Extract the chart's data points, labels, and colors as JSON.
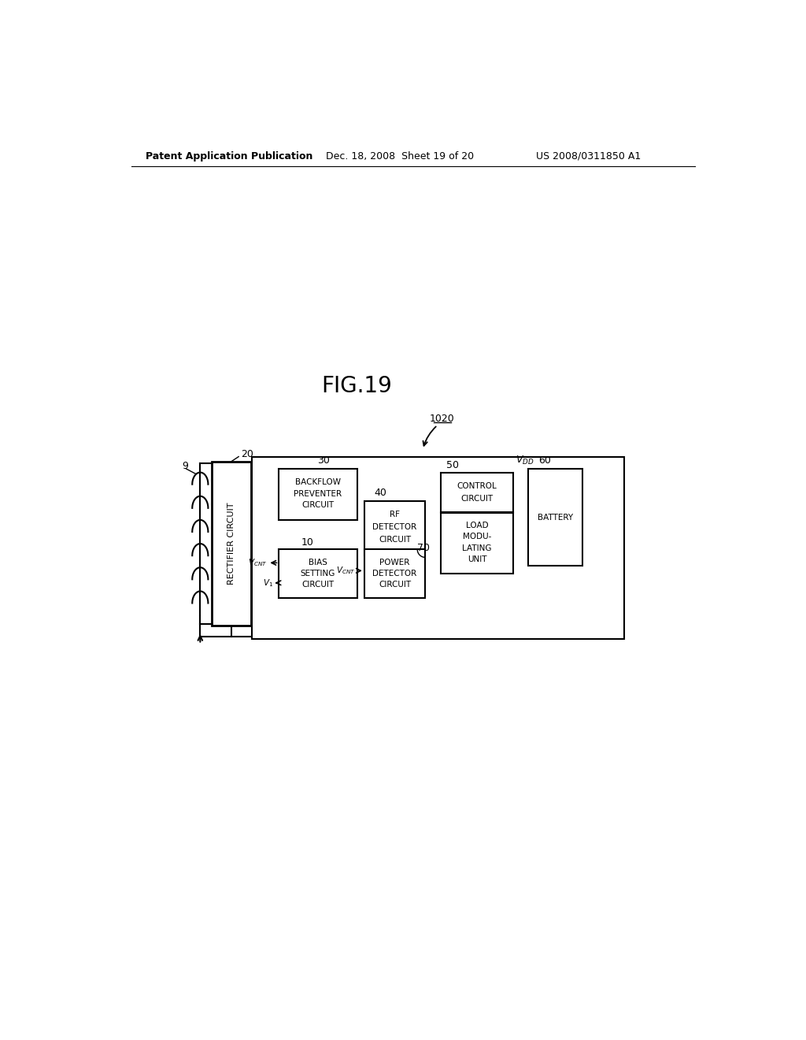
{
  "title": "FIG.19",
  "header_left": "Patent Application Publication",
  "header_mid": "Dec. 18, 2008  Sheet 19 of 20",
  "header_right": "US 2008/0311850 A1",
  "bg_color": "#ffffff",
  "fig_label": "1020",
  "antenna_label": "9",
  "rectifier_label": "RECTIFIER CIRCUIT",
  "rectifier_num": "20",
  "backflow_label": [
    "BACKFLOW",
    "PREVENTER",
    "CIRCUIT"
  ],
  "backflow_num": "30",
  "rf_label": [
    "RF",
    "DETECTOR",
    "CIRCUIT"
  ],
  "rf_num": "40",
  "control_label": [
    "CONTROL",
    "CIRCUIT"
  ],
  "control_num": "50",
  "battery_label": [
    "BATTERY"
  ],
  "battery_num": "60",
  "bias_label": [
    "BIAS",
    "SETTING",
    "CIRCUIT"
  ],
  "bias_num": "10",
  "power_label": [
    "POWER",
    "DETECTOR",
    "CIRCUIT"
  ],
  "power_num": "70",
  "load_label": [
    "LOAD",
    "MODU-",
    "LATING",
    "UNIT"
  ]
}
